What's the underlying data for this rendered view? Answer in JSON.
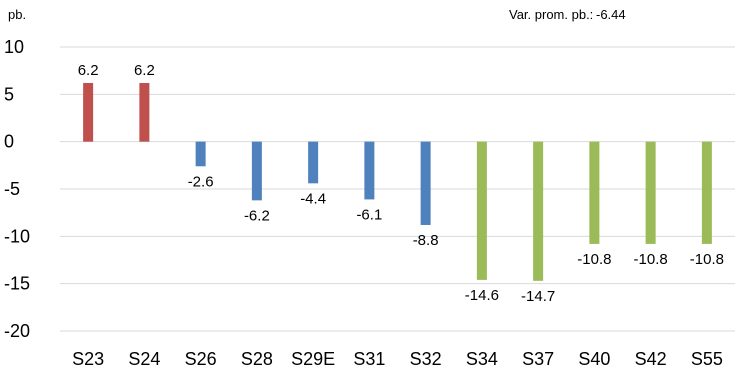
{
  "chart_data": {
    "type": "bar",
    "unit_label": "pb.",
    "note": {
      "label": "Var. prom. pb.:",
      "value": "-6.44"
    },
    "categories": [
      "S23",
      "S24",
      "S26",
      "S28",
      "S29E",
      "S31",
      "S32",
      "S34",
      "S37",
      "S40",
      "S42",
      "S55"
    ],
    "values": [
      6.2,
      6.2,
      -2.6,
      -6.2,
      -4.4,
      -6.1,
      -8.8,
      -14.6,
      -14.7,
      -10.8,
      -10.8,
      -10.8
    ],
    "bar_colors": [
      "#c0504d",
      "#c0504d",
      "#4f81bd",
      "#4f81bd",
      "#4f81bd",
      "#4f81bd",
      "#4f81bd",
      "#9bbb59",
      "#9bbb59",
      "#9bbb59",
      "#9bbb59",
      "#9bbb59"
    ],
    "ylim": [
      -20,
      10
    ],
    "yticks": [
      10,
      5,
      0,
      -5,
      -10,
      -15,
      -20
    ],
    "grid": true,
    "legend": "none"
  }
}
